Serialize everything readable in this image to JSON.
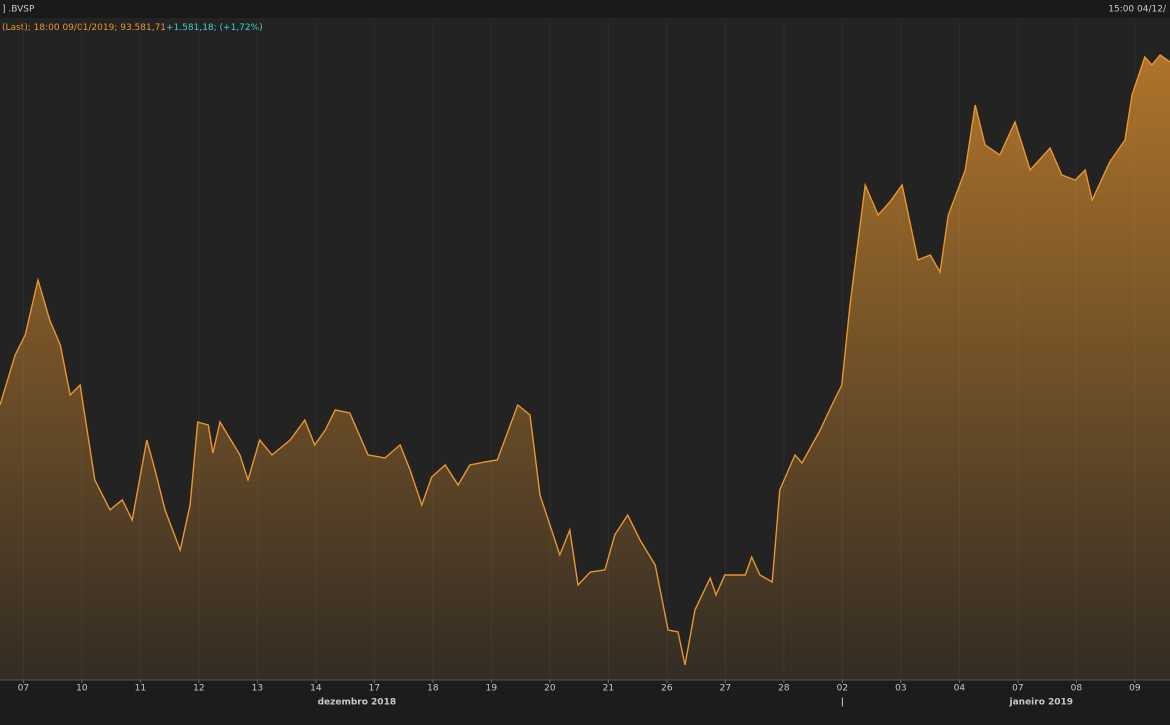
{
  "chart_data": {
    "type": "area",
    "header_left": "] .BVSP",
    "header_right": "15:00 04/12/",
    "legend_text": "(Last); 18:00 09/01/2019; 93.581,71",
    "legend_change": "+1.581,18; (+1,72%)",
    "color": "#e8962e",
    "change_color": "#3fd0c8",
    "grid": true,
    "xlim": [
      0.1,
      20.1
    ],
    "ylim": [
      84480,
      94160
    ],
    "xticks": [
      {
        "value": 0.5,
        "label": "07"
      },
      {
        "value": 1.5,
        "label": "10"
      },
      {
        "value": 2.5,
        "label": "11"
      },
      {
        "value": 3.5,
        "label": "12"
      },
      {
        "value": 4.5,
        "label": "13"
      },
      {
        "value": 5.5,
        "label": "14"
      },
      {
        "value": 6.5,
        "label": "17"
      },
      {
        "value": 7.5,
        "label": "18"
      },
      {
        "value": 8.5,
        "label": "19"
      },
      {
        "value": 9.5,
        "label": "20"
      },
      {
        "value": 10.5,
        "label": "21"
      },
      {
        "value": 11.5,
        "label": "26"
      },
      {
        "value": 12.5,
        "label": "27"
      },
      {
        "value": 13.5,
        "label": "28"
      },
      {
        "value": 14.5,
        "label": "02"
      },
      {
        "value": 15.5,
        "label": "03"
      },
      {
        "value": 16.5,
        "label": "04"
      },
      {
        "value": 17.5,
        "label": "07"
      },
      {
        "value": 18.5,
        "label": "08"
      },
      {
        "value": 19.5,
        "label": "09"
      }
    ],
    "annotations": [
      {
        "x": 6.2,
        "text": "dezembro 2018"
      },
      {
        "x": 14.5,
        "text": "|"
      },
      {
        "x": 17.9,
        "text": "janeiro 2019"
      }
    ],
    "x": [
      0.1,
      0.36,
      0.53,
      0.75,
      0.95,
      1.13,
      1.3,
      1.47,
      1.72,
      1.98,
      2.19,
      2.36,
      2.61,
      2.75,
      2.92,
      3.18,
      3.35,
      3.48,
      3.66,
      3.74,
      3.86,
      4.2,
      4.34,
      4.54,
      4.75,
      5.06,
      5.31,
      5.48,
      5.66,
      5.83,
      6.08,
      6.39,
      6.68,
      6.94,
      7.11,
      7.31,
      7.48,
      7.71,
      7.93,
      8.13,
      8.39,
      8.6,
      8.95,
      9.16,
      9.33,
      9.67,
      9.84,
      9.98,
      10.19,
      10.44,
      10.61,
      10.83,
      11.04,
      11.3,
      11.52,
      11.69,
      11.81,
      11.98,
      12.24,
      12.34,
      12.49,
      12.84,
      12.95,
      13.09,
      13.3,
      13.43,
      13.69,
      13.81,
      14.12,
      14.32,
      14.49,
      14.63,
      14.89,
      15.11,
      15.31,
      15.52,
      15.79,
      16.0,
      16.17,
      16.31,
      16.6,
      16.77,
      16.94,
      17.19,
      17.45,
      17.71,
      18.05,
      18.25,
      18.48,
      18.65,
      18.77,
      19.07,
      19.33,
      19.45,
      19.67,
      19.79,
      19.93,
      20.1
    ],
    "values": [
      88526,
      89262,
      89556,
      90365,
      89776,
      89409,
      88673,
      88820,
      87423,
      86982,
      87129,
      86834,
      88011,
      87570,
      86982,
      86393,
      87055,
      88276,
      88232,
      87820,
      88276,
      87791,
      87423,
      88011,
      87791,
      88011,
      88305,
      87938,
      88158,
      88453,
      88408,
      87791,
      87746,
      87938,
      87570,
      87055,
      87467,
      87643,
      87349,
      87643,
      87688,
      87717,
      88526,
      88379,
      87202,
      86320,
      86687,
      85878,
      86069,
      86099,
      86614,
      86908,
      86540,
      86172,
      85216,
      85187,
      84701,
      85511,
      85981,
      85731,
      86025,
      86025,
      86290,
      86025,
      85922,
      87276,
      87791,
      87673,
      88158,
      88526,
      88820,
      89997,
      91762,
      91321,
      91512,
      91762,
      90659,
      90733,
      90482,
      91321,
      91983,
      92939,
      92351,
      92204,
      92689,
      91983,
      92307,
      91909,
      91836,
      91983,
      91542,
      92101,
      92424,
      93086,
      93645,
      93527,
      93675,
      93572
    ]
  }
}
